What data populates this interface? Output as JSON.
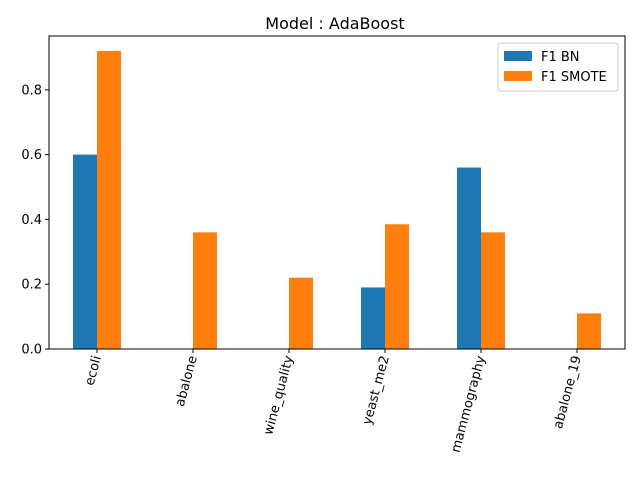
{
  "chart_data": {
    "type": "bar",
    "title": "Model : AdaBoost",
    "xlabel": "",
    "ylabel": "",
    "categories": [
      "ecoli",
      "abalone",
      "wine_quality",
      "yeast_me2",
      "mammography",
      "abalone_19"
    ],
    "series": [
      {
        "name": "F1 BN",
        "color": "#1f77b4",
        "values": [
          0.6,
          0.0,
          0.0,
          0.19,
          0.56,
          0.0
        ]
      },
      {
        "name": "F1 SMOTE",
        "color": "#ff7f0e",
        "values": [
          0.92,
          0.36,
          0.22,
          0.385,
          0.36,
          0.11
        ]
      }
    ],
    "ylim": [
      0,
      0.966
    ],
    "yticks": [
      0.0,
      0.2,
      0.4,
      0.6,
      0.8
    ],
    "ytick_labels": [
      "0.0",
      "0.2",
      "0.4",
      "0.6",
      "0.8"
    ],
    "xtick_rotation_deg": 75,
    "legend_position": "top-right",
    "grid": false
  }
}
